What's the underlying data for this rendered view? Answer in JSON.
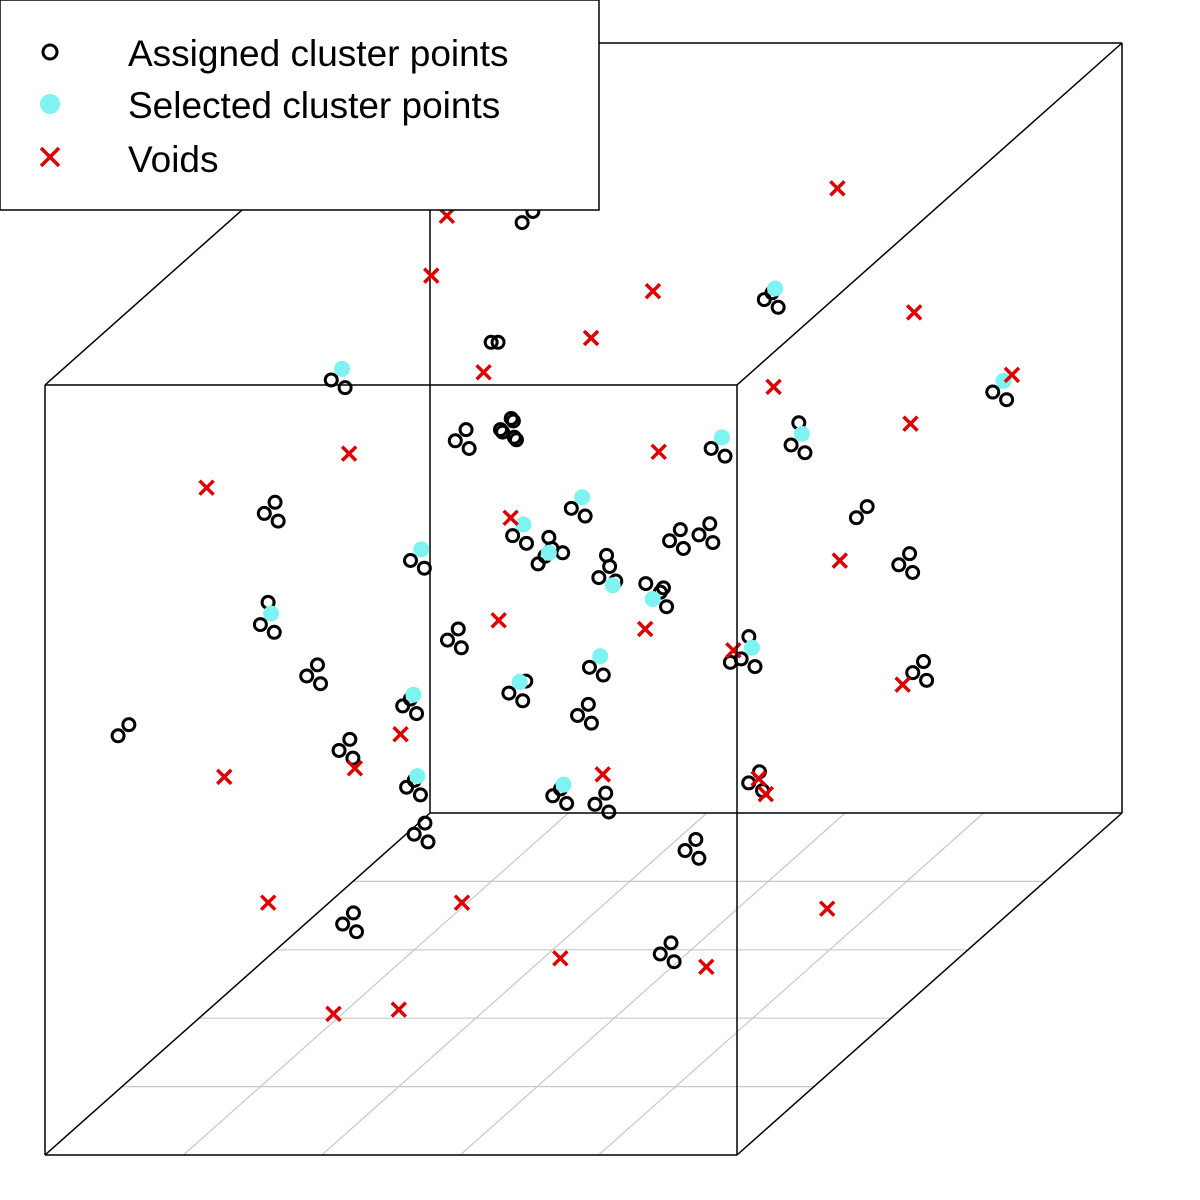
{
  "chart_data": {
    "type": "scatter",
    "projection": "3d",
    "title": "",
    "xlabel": "",
    "ylabel": "",
    "zlabel": "",
    "xlim": [
      0,
      1
    ],
    "ylim": [
      0,
      1
    ],
    "zlim": [
      0,
      1
    ],
    "floor_grid": true,
    "legend_position": "top-left",
    "series": [
      {
        "name": "Assigned cluster points",
        "marker": "open-circle",
        "color": "#000000",
        "points": [
          [
            0.45,
            0.35,
            0.9
          ],
          [
            0.46,
            0.35,
            0.9
          ],
          [
            0.5,
            0.4,
            0.6
          ],
          [
            0.51,
            0.4,
            0.61
          ],
          [
            0.52,
            0.41,
            0.6
          ],
          [
            0.5,
            0.41,
            0.62
          ],
          [
            0.49,
            0.4,
            0.59
          ],
          [
            0.55,
            0.45,
            0.55
          ],
          [
            0.56,
            0.46,
            0.56
          ],
          [
            0.57,
            0.45,
            0.54
          ],
          [
            0.55,
            0.47,
            0.57
          ],
          [
            0.58,
            0.44,
            0.55
          ],
          [
            0.6,
            0.5,
            0.5
          ],
          [
            0.61,
            0.51,
            0.51
          ],
          [
            0.62,
            0.5,
            0.49
          ],
          [
            0.6,
            0.52,
            0.5
          ],
          [
            0.59,
            0.5,
            0.52
          ],
          [
            0.35,
            0.3,
            0.45
          ],
          [
            0.36,
            0.31,
            0.46
          ],
          [
            0.37,
            0.3,
            0.44
          ],
          [
            0.35,
            0.32,
            0.45
          ],
          [
            0.7,
            0.55,
            0.4
          ],
          [
            0.71,
            0.56,
            0.41
          ],
          [
            0.72,
            0.55,
            0.39
          ],
          [
            0.7,
            0.57,
            0.42
          ],
          [
            0.69,
            0.54,
            0.4
          ],
          [
            0.3,
            0.4,
            0.3
          ],
          [
            0.31,
            0.41,
            0.31
          ],
          [
            0.32,
            0.4,
            0.29
          ],
          [
            0.3,
            0.42,
            0.3
          ],
          [
            0.4,
            0.6,
            0.2
          ],
          [
            0.41,
            0.61,
            0.21
          ],
          [
            0.42,
            0.6,
            0.19
          ],
          [
            0.4,
            0.62,
            0.2
          ],
          [
            0.8,
            0.5,
            0.7
          ],
          [
            0.81,
            0.51,
            0.71
          ],
          [
            0.82,
            0.5,
            0.69
          ],
          [
            0.8,
            0.52,
            0.72
          ],
          [
            0.65,
            0.7,
            0.8
          ],
          [
            0.66,
            0.71,
            0.81
          ],
          [
            0.67,
            0.7,
            0.79
          ],
          [
            0.65,
            0.72,
            0.8
          ],
          [
            0.2,
            0.2,
            0.6
          ],
          [
            0.21,
            0.21,
            0.61
          ],
          [
            0.22,
            0.2,
            0.59
          ],
          [
            0.2,
            0.22,
            0.62
          ],
          [
            0.25,
            0.5,
            0.55
          ],
          [
            0.26,
            0.51,
            0.56
          ],
          [
            0.27,
            0.5,
            0.54
          ],
          [
            0.15,
            0.3,
            0.7
          ],
          [
            0.16,
            0.31,
            0.71
          ],
          [
            0.17,
            0.3,
            0.69
          ],
          [
            0.9,
            0.6,
            0.5
          ],
          [
            0.91,
            0.61,
            0.51
          ],
          [
            0.92,
            0.6,
            0.49
          ],
          [
            0.85,
            0.3,
            0.35
          ],
          [
            0.86,
            0.31,
            0.36
          ],
          [
            0.87,
            0.3,
            0.34
          ],
          [
            0.1,
            0.5,
            0.4
          ],
          [
            0.11,
            0.51,
            0.41
          ],
          [
            0.12,
            0.5,
            0.39
          ],
          [
            0.55,
            0.2,
            0.85
          ],
          [
            0.56,
            0.21,
            0.86
          ],
          [
            0.57,
            0.2,
            0.84
          ],
          [
            0.3,
            0.7,
            0.9
          ],
          [
            0.31,
            0.71,
            0.91
          ],
          [
            0.75,
            0.25,
            0.15
          ],
          [
            0.76,
            0.26,
            0.16
          ],
          [
            0.77,
            0.25,
            0.14
          ],
          [
            0.05,
            0.1,
            0.5
          ],
          [
            0.06,
            0.11,
            0.51
          ],
          [
            0.95,
            0.4,
            0.65
          ],
          [
            0.96,
            0.41,
            0.66
          ],
          [
            0.45,
            0.15,
            0.35
          ],
          [
            0.46,
            0.16,
            0.36
          ],
          [
            0.47,
            0.15,
            0.34
          ],
          [
            0.6,
            0.35,
            0.3
          ],
          [
            0.61,
            0.36,
            0.31
          ],
          [
            0.62,
            0.35,
            0.29
          ],
          [
            0.38,
            0.5,
            0.72
          ],
          [
            0.39,
            0.51,
            0.73
          ],
          [
            0.4,
            0.5,
            0.71
          ],
          [
            0.68,
            0.4,
            0.62
          ],
          [
            0.69,
            0.41,
            0.63
          ],
          [
            0.7,
            0.4,
            0.61
          ],
          [
            0.22,
            0.65,
            0.38
          ],
          [
            0.23,
            0.66,
            0.39
          ],
          [
            0.24,
            0.65,
            0.37
          ],
          [
            0.5,
            0.8,
            0.45
          ],
          [
            0.51,
            0.81,
            0.46
          ],
          [
            0.52,
            0.8,
            0.44
          ],
          [
            0.82,
            0.78,
            0.28
          ],
          [
            0.83,
            0.79,
            0.29
          ],
          [
            0.84,
            0.78,
            0.27
          ],
          [
            0.12,
            0.85,
            0.55
          ],
          [
            0.13,
            0.86,
            0.56
          ],
          [
            0.14,
            0.85,
            0.54
          ],
          [
            0.58,
            0.62,
            0.12
          ],
          [
            0.59,
            0.63,
            0.13
          ],
          [
            0.6,
            0.62,
            0.11
          ],
          [
            0.33,
            0.18,
            0.22
          ],
          [
            0.34,
            0.19,
            0.23
          ],
          [
            0.35,
            0.18,
            0.21
          ],
          [
            0.72,
            0.12,
            0.58
          ],
          [
            0.73,
            0.13,
            0.59
          ],
          [
            0.74,
            0.12,
            0.57
          ],
          [
            0.42,
            0.45,
            0.4
          ],
          [
            0.43,
            0.46,
            0.41
          ],
          [
            0.44,
            0.45,
            0.39
          ],
          [
            0.45,
            0.44,
            0.42
          ],
          [
            0.18,
            0.42,
            0.82
          ],
          [
            0.19,
            0.43,
            0.83
          ],
          [
            0.2,
            0.42,
            0.81
          ],
          [
            0.88,
            0.88,
            0.6
          ],
          [
            0.89,
            0.89,
            0.61
          ],
          [
            0.9,
            0.88,
            0.59
          ],
          [
            0.52,
            0.28,
            0.68
          ],
          [
            0.53,
            0.29,
            0.69
          ],
          [
            0.54,
            0.28,
            0.67
          ],
          [
            0.28,
            0.88,
            0.18
          ],
          [
            0.29,
            0.89,
            0.19
          ],
          [
            0.3,
            0.88,
            0.17
          ],
          [
            0.64,
            0.58,
            0.66
          ],
          [
            0.65,
            0.59,
            0.67
          ],
          [
            0.66,
            0.58,
            0.65
          ],
          [
            0.08,
            0.62,
            0.25
          ],
          [
            0.09,
            0.63,
            0.26
          ],
          [
            0.1,
            0.62,
            0.24
          ],
          [
            0.36,
            0.72,
            0.52
          ],
          [
            0.37,
            0.73,
            0.53
          ],
          [
            0.38,
            0.72,
            0.51
          ]
        ]
      },
      {
        "name": "Selected cluster points",
        "marker": "filled-circle",
        "color": "#7ff2f2",
        "points": [
          [
            0.5,
            0.41,
            0.6
          ],
          [
            0.57,
            0.45,
            0.54
          ],
          [
            0.6,
            0.5,
            0.5
          ],
          [
            0.36,
            0.31,
            0.46
          ],
          [
            0.71,
            0.56,
            0.41
          ],
          [
            0.31,
            0.41,
            0.31
          ],
          [
            0.41,
            0.61,
            0.21
          ],
          [
            0.81,
            0.51,
            0.71
          ],
          [
            0.66,
            0.71,
            0.81
          ],
          [
            0.21,
            0.21,
            0.61
          ],
          [
            0.26,
            0.51,
            0.56
          ],
          [
            0.43,
            0.46,
            0.41
          ],
          [
            0.53,
            0.29,
            0.69
          ],
          [
            0.65,
            0.59,
            0.67
          ],
          [
            0.37,
            0.73,
            0.53
          ],
          [
            0.89,
            0.89,
            0.61
          ],
          [
            0.19,
            0.43,
            0.83
          ],
          [
            0.73,
            0.13,
            0.59
          ]
        ]
      },
      {
        "name": "Voids",
        "marker": "x",
        "color": "#dd0000",
        "points": [
          [
            0.4,
            0.2,
            0.1
          ],
          [
            0.7,
            0.8,
            0.9
          ],
          [
            0.15,
            0.15,
            0.8
          ],
          [
            0.9,
            0.1,
            0.2
          ],
          [
            0.3,
            0.6,
            0.75
          ],
          [
            0.85,
            0.7,
            0.3
          ],
          [
            0.55,
            0.35,
            0.1
          ],
          [
            0.2,
            0.85,
            0.45
          ],
          [
            0.65,
            0.25,
            0.95
          ],
          [
            0.1,
            0.4,
            0.15
          ],
          [
            0.75,
            0.9,
            0.55
          ],
          [
            0.45,
            0.75,
            0.35
          ],
          [
            0.95,
            0.55,
            0.85
          ],
          [
            0.25,
            0.3,
            0.05
          ],
          [
            0.6,
            0.1,
            0.65
          ],
          [
            0.35,
            0.95,
            0.7
          ],
          [
            0.8,
            0.35,
            0.5
          ],
          [
            0.05,
            0.7,
            0.6
          ],
          [
            0.5,
            0.55,
            0.25
          ],
          [
            0.92,
            0.2,
            0.4
          ],
          [
            0.28,
            0.5,
            0.92
          ],
          [
            0.68,
            0.65,
            0.18
          ],
          [
            0.12,
            0.25,
            0.38
          ],
          [
            0.58,
            0.85,
            0.62
          ],
          [
            0.42,
            0.05,
            0.48
          ],
          [
            0.88,
            0.45,
            0.12
          ],
          [
            0.18,
            0.6,
            0.28
          ],
          [
            0.72,
            0.3,
            0.78
          ],
          [
            0.38,
            0.4,
            0.15
          ],
          [
            0.62,
            0.95,
            0.35
          ],
          [
            0.08,
            0.9,
            0.82
          ],
          [
            0.98,
            0.75,
            0.68
          ]
        ]
      }
    ]
  },
  "legend": {
    "items": [
      {
        "label": "Assigned cluster points",
        "marker": "open-circle",
        "color": "#000000"
      },
      {
        "label": "Selected cluster points",
        "marker": "filled-circle",
        "color": "#7ff2f2"
      },
      {
        "label": "Voids",
        "marker": "x",
        "color": "#dd0000"
      }
    ]
  }
}
